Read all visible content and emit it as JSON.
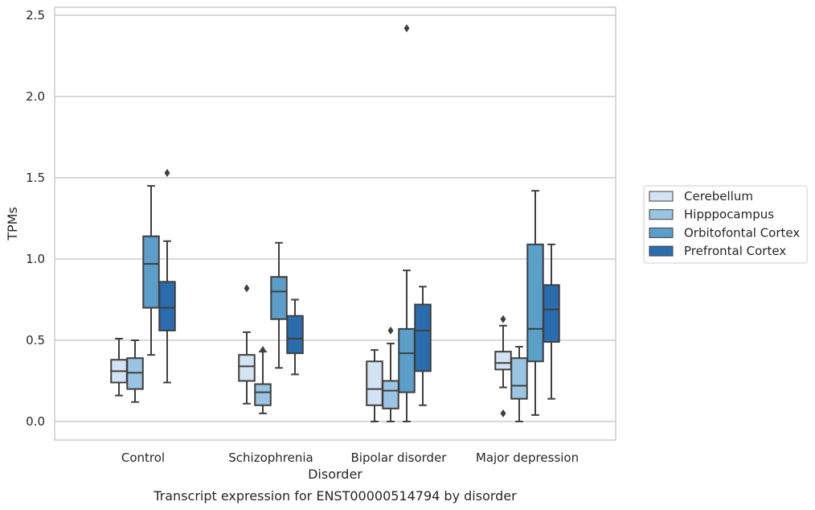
{
  "chart_data": {
    "type": "box",
    "xlabel": "Disorder",
    "ylabel": "TPMs",
    "caption": "Transcript expression for ENST00000514794 by disorder",
    "ylim": [
      -0.12,
      2.55
    ],
    "yticks": [
      {
        "value": 0.0,
        "label": "0.0"
      },
      {
        "value": 0.5,
        "label": "0.5"
      },
      {
        "value": 1.0,
        "label": "1.0"
      },
      {
        "value": 1.5,
        "label": "1.5"
      },
      {
        "value": 2.0,
        "label": "2.0"
      },
      {
        "value": 2.5,
        "label": "2.5"
      }
    ],
    "grid": "horizontal",
    "legend_position": "right",
    "categories": [
      "Control",
      "Schizophrenia",
      "Bipolar disorder",
      "Major depression"
    ],
    "series": [
      {
        "name": "Cerebellum",
        "color": "#d3e3f3",
        "boxes": [
          {
            "whislo": 0.16,
            "q1": 0.24,
            "med": 0.31,
            "q3": 0.38,
            "whishi": 0.51,
            "fliers": []
          },
          {
            "whislo": 0.11,
            "q1": 0.25,
            "med": 0.34,
            "q3": 0.41,
            "whishi": 0.55,
            "fliers": [
              0.82
            ]
          },
          {
            "whislo": 0.0,
            "q1": 0.1,
            "med": 0.2,
            "q3": 0.37,
            "whishi": 0.44,
            "fliers": []
          },
          {
            "whislo": 0.21,
            "q1": 0.32,
            "med": 0.36,
            "q3": 0.43,
            "whishi": 0.59,
            "fliers": [
              0.63,
              0.05
            ]
          }
        ]
      },
      {
        "name": "Hipppocampus",
        "color": "#9ac4e1",
        "boxes": [
          {
            "whislo": 0.12,
            "q1": 0.2,
            "med": 0.3,
            "q3": 0.39,
            "whishi": 0.5,
            "fliers": []
          },
          {
            "whislo": 0.05,
            "q1": 0.1,
            "med": 0.18,
            "q3": 0.23,
            "whishi": 0.43,
            "fliers": [
              0.44
            ]
          },
          {
            "whislo": 0.0,
            "q1": 0.08,
            "med": 0.19,
            "q3": 0.25,
            "whishi": 0.48,
            "fliers": [
              0.56
            ]
          },
          {
            "whislo": 0.0,
            "q1": 0.14,
            "med": 0.22,
            "q3": 0.39,
            "whishi": 0.46,
            "fliers": []
          }
        ]
      },
      {
        "name": "Orbitofontal Cortex",
        "color": "#5a9ec9",
        "boxes": [
          {
            "whislo": 0.41,
            "q1": 0.7,
            "med": 0.97,
            "q3": 1.14,
            "whishi": 1.45,
            "fliers": []
          },
          {
            "whislo": 0.33,
            "q1": 0.63,
            "med": 0.8,
            "q3": 0.89,
            "whishi": 1.1,
            "fliers": []
          },
          {
            "whislo": 0.0,
            "q1": 0.18,
            "med": 0.42,
            "q3": 0.57,
            "whishi": 0.93,
            "fliers": [
              2.42
            ]
          },
          {
            "whislo": 0.04,
            "q1": 0.37,
            "med": 0.57,
            "q3": 1.09,
            "whishi": 1.42,
            "fliers": []
          }
        ]
      },
      {
        "name": "Prefrontal Cortex",
        "color": "#2a6cad",
        "boxes": [
          {
            "whislo": 0.24,
            "q1": 0.56,
            "med": 0.7,
            "q3": 0.86,
            "whishi": 1.11,
            "fliers": [
              1.53
            ]
          },
          {
            "whislo": 0.29,
            "q1": 0.42,
            "med": 0.51,
            "q3": 0.65,
            "whishi": 0.75,
            "fliers": []
          },
          {
            "whislo": 0.1,
            "q1": 0.31,
            "med": 0.56,
            "q3": 0.72,
            "whishi": 0.83,
            "fliers": []
          },
          {
            "whislo": 0.14,
            "q1": 0.49,
            "med": 0.69,
            "q3": 0.84,
            "whishi": 1.09,
            "fliers": []
          }
        ]
      }
    ]
  }
}
